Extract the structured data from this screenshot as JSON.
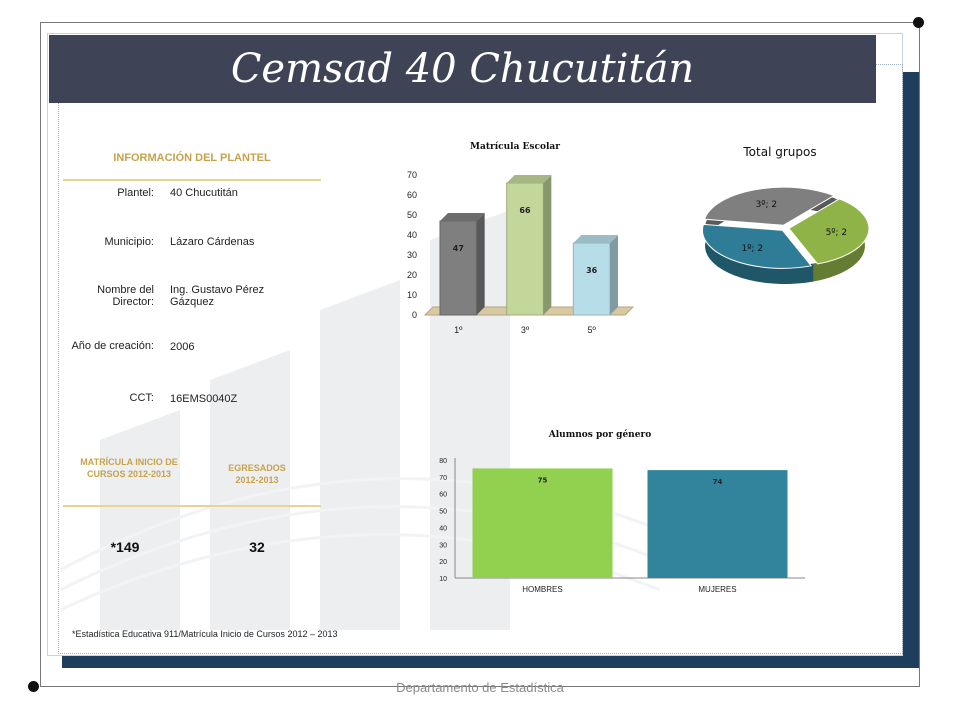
{
  "title": "Cemsad 40 Chucutitán",
  "info_section_title": "INFORMACIÓN DEL PLANTEL",
  "info": [
    {
      "label": "Plantel:",
      "value": "40 Chucutitán"
    },
    {
      "label": "Municipio:",
      "value": "Lázaro Cárdenas"
    },
    {
      "label": "Nombre del Director:",
      "value": "Ing. Gustavo Pérez Gázquez"
    },
    {
      "label": "Año de creación:",
      "value": "2006"
    },
    {
      "label": "CCT:",
      "value": "16EMS0040Z"
    }
  ],
  "matricula_title": "MATRÍCULA INICIO DE CURSOS 2012-2013",
  "egresados_title": "EGRESADOS 2012-2013",
  "matricula_value": "*149",
  "egresados_value": "32",
  "footnote": "*Estadística Educativa 911/Matrícula Inicio de Cursos 2012 – 2013",
  "footer": "Departamento de Estadística",
  "colors": {
    "title_bar": "#3f4356",
    "frame": "#1f3d5c",
    "accent": "#c8a24a"
  },
  "chart_data": [
    {
      "type": "bar",
      "title": "Matrícula Escolar",
      "categories": [
        "1º",
        "3º",
        "5º"
      ],
      "values": [
        47,
        66,
        36
      ],
      "ylim": [
        0,
        70
      ],
      "yticks": [
        "0",
        "10",
        "20",
        "30",
        "40",
        "50",
        "60",
        "70"
      ],
      "colors": [
        "#7f7f7f",
        "#c4d79b",
        "#b7dde8"
      ]
    },
    {
      "type": "pie",
      "title": "Total grupos",
      "slices": [
        {
          "label": "3º; 2",
          "value": 2,
          "color": "#7f7f7f"
        },
        {
          "label": "5º; 2",
          "value": 2,
          "color": "#8fb347"
        },
        {
          "label": "1º; 2",
          "value": 2,
          "color": "#2e7c95"
        }
      ]
    },
    {
      "type": "bar",
      "title": "Alumnos por género",
      "categories": [
        "HOMBRES",
        "MUJERES"
      ],
      "values": [
        75,
        74
      ],
      "ylim": [
        10,
        80
      ],
      "yticks": [
        "10",
        "20",
        "30",
        "40",
        "50",
        "60",
        "70",
        "80"
      ],
      "colors": [
        "#92d050",
        "#31849b"
      ]
    }
  ]
}
